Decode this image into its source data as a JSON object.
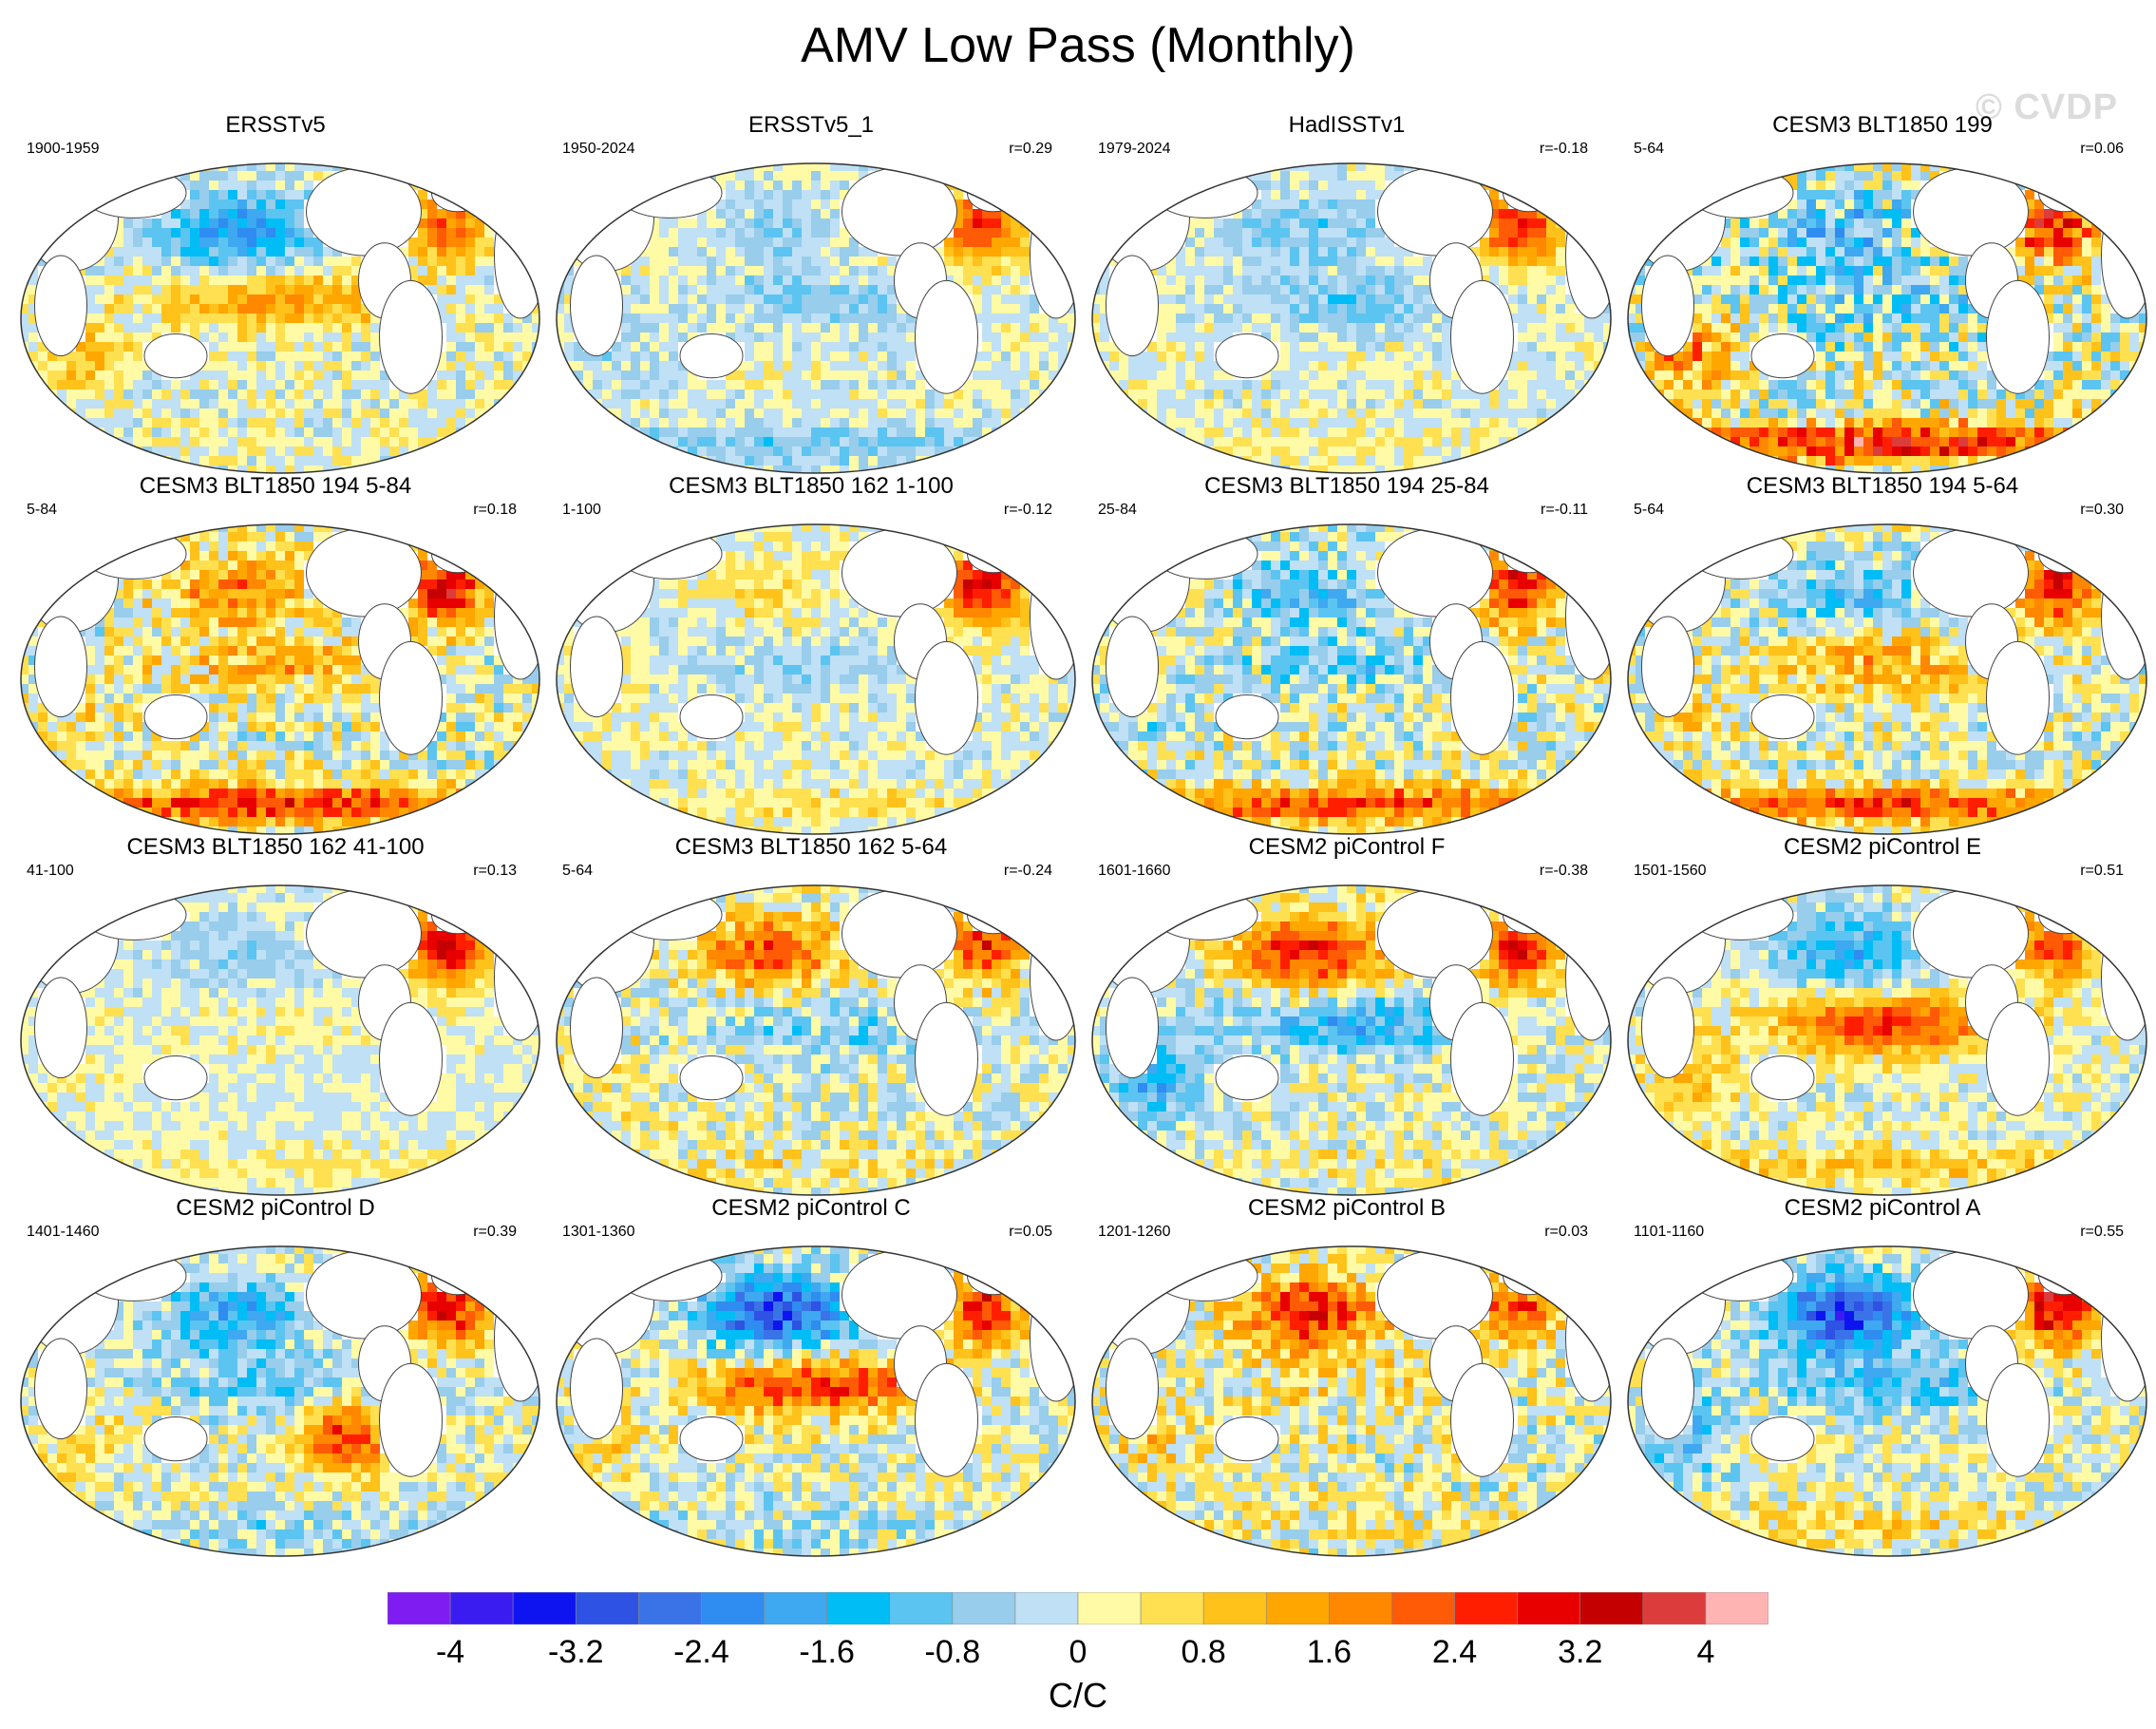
{
  "title": "AMV Low Pass (Monthly)",
  "watermark": "© CVDP",
  "colors": {
    "scale": [
      "#7f1cf2",
      "#3b1cf0",
      "#0e14f0",
      "#2e52e4",
      "#3a73e8",
      "#2f8cf0",
      "#3ea8f0",
      "#00bdf5",
      "#5cc4f0",
      "#98cdec",
      "#bfe0f5",
      "#fffaa5",
      "#ffe050",
      "#ffc21a",
      "#ffa600",
      "#ff8800",
      "#ff5a05",
      "#ff1e00",
      "#e80000",
      "#c50000",
      "#dc3c3c",
      "#ffb4b4"
    ],
    "land": "#ffffff",
    "coast": "#444444"
  },
  "chart_data": {
    "type": "map_panels",
    "title": "AMV Low Pass (Monthly)",
    "colorbar": {
      "units": "C/C",
      "tick_labels": [
        "-4",
        "-3.2",
        "-2.4",
        "-1.6",
        "-0.8",
        "0",
        "0.8",
        "1.6",
        "2.4",
        "3.2",
        "4"
      ],
      "range": [
        -4.4,
        4.4
      ],
      "interval": 0.4
    },
    "panels": [
      {
        "title": "ERSSTv5",
        "period": "1900-1959",
        "r": "",
        "pattern": {
          "npac": -2.0,
          "natl": 2.0,
          "tpac": 1.6,
          "so": 0.2,
          "io": 1.2,
          "scatter": 0.6
        }
      },
      {
        "title": "ERSSTv5_1",
        "period": "1950-2024",
        "r": "r=0.29",
        "pattern": {
          "npac": -0.6,
          "natl": 2.6,
          "tpac": -0.6,
          "so": -0.8,
          "io": -0.4,
          "scatter": 0.5
        }
      },
      {
        "title": "HadISSTv1",
        "period": "1979-2024",
        "r": "r=-0.18",
        "pattern": {
          "npac": -0.8,
          "natl": 2.8,
          "tpac": -0.8,
          "so": 0.4,
          "io": 0.2,
          "scatter": 0.5
        }
      },
      {
        "title": "CESM3 BLT1850 199",
        "period": "5-64",
        "r": "r=0.06",
        "pattern": {
          "npac": -1.4,
          "natl": 3.0,
          "tpac": -1.0,
          "so": 3.2,
          "io": 1.6,
          "scatter": 1.2
        }
      },
      {
        "title": "CESM3 BLT1850 194 5-84",
        "period": "5-84",
        "r": "r=0.18",
        "pattern": {
          "npac": 1.8,
          "natl": 3.0,
          "tpac": 1.2,
          "so": 2.8,
          "io": 0.6,
          "scatter": 0.9
        }
      },
      {
        "title": "CESM3 BLT1850 162 1-100",
        "period": "1-100",
        "r": "r=-0.12",
        "pattern": {
          "npac": 0.6,
          "natl": 3.2,
          "tpac": -0.6,
          "so": 0.6,
          "io": 0.2,
          "scatter": 0.5
        }
      },
      {
        "title": "CESM3 BLT1850 194 25-84",
        "period": "25-84",
        "r": "r=-0.11",
        "pattern": {
          "npac": -1.2,
          "natl": 3.0,
          "tpac": -0.8,
          "so": 2.4,
          "io": -0.4,
          "scatter": 0.9
        }
      },
      {
        "title": "CESM3 BLT1850 194 5-64",
        "period": "5-64",
        "r": "r=0.30",
        "pattern": {
          "npac": -1.2,
          "natl": 3.0,
          "tpac": 1.4,
          "so": 2.4,
          "io": 0.6,
          "scatter": 0.9
        }
      },
      {
        "title": "CESM3 BLT1850 162 41-100",
        "period": "41-100",
        "r": "r=0.13",
        "pattern": {
          "npac": -0.6,
          "natl": 3.2,
          "tpac": 0.2,
          "so": 0.4,
          "io": 0.2,
          "scatter": 0.4
        }
      },
      {
        "title": "CESM3 BLT1850 162 5-64",
        "period": "5-64",
        "r": "r=-0.24",
        "pattern": {
          "npac": 2.2,
          "natl": 2.6,
          "tpac": -0.8,
          "so": 0.6,
          "io": 0.4,
          "scatter": 0.8
        }
      },
      {
        "title": "CESM2 piControl F",
        "period": "1601-1660",
        "r": "r=-0.38",
        "pattern": {
          "npac": 2.8,
          "natl": 3.0,
          "tpac": -1.6,
          "so": 0.4,
          "io": -1.6,
          "scatter": 0.7
        }
      },
      {
        "title": "CESM2 piControl E",
        "period": "1501-1560",
        "r": "r=0.51",
        "pattern": {
          "npac": -1.6,
          "natl": 2.2,
          "tpac": 2.6,
          "so": 1.0,
          "io": 1.2,
          "scatter": 0.6
        }
      },
      {
        "title": "CESM2 piControl D",
        "period": "1401-1460",
        "r": "r=0.39",
        "pattern": {
          "npac": -1.6,
          "natl": 3.0,
          "tpac": -1.0,
          "so": -0.6,
          "io": 0.6,
          "satl": 2.6,
          "scatter": 0.7
        }
      },
      {
        "title": "CESM2 piControl C",
        "period": "1301-1360",
        "r": "r=0.05",
        "pattern": {
          "npac": -3.0,
          "natl": 2.8,
          "tpac": 2.6,
          "so": -0.4,
          "io": 0.6,
          "scatter": 0.8
        }
      },
      {
        "title": "CESM2 piControl B",
        "period": "1201-1260",
        "r": "r=0.03",
        "pattern": {
          "npac": 2.8,
          "natl": 2.4,
          "tpac": 0.6,
          "so": 0.4,
          "io": 0.8,
          "scatter": 0.9
        }
      },
      {
        "title": "CESM2 piControl A",
        "period": "1101-1160",
        "r": "r=0.55",
        "pattern": {
          "npac": -3.2,
          "natl": 3.2,
          "tpac": -1.2,
          "so": 0.6,
          "io": -1.2,
          "scatter": 0.8
        }
      }
    ]
  }
}
